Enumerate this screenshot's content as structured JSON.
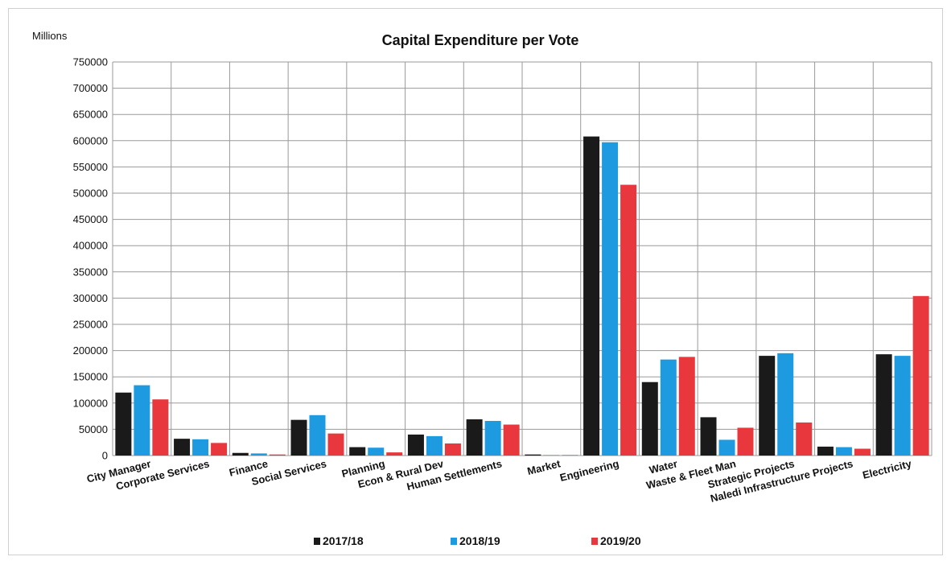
{
  "chart_data": {
    "type": "bar",
    "title": "Capital Expenditure per Vote",
    "ylabel": "Millions",
    "xlabel": "",
    "ylim": [
      0,
      750000
    ],
    "yticks": [
      0,
      50000,
      100000,
      150000,
      200000,
      250000,
      300000,
      350000,
      400000,
      450000,
      500000,
      550000,
      600000,
      650000,
      700000,
      750000
    ],
    "grid": true,
    "legend_position": "bottom",
    "categories": [
      "City Manager",
      "Corporate Services",
      "Finance",
      "Social Services",
      "Planning",
      "Econ & Rural Dev",
      "Human Settlements",
      "Market",
      "Engineering",
      "Water",
      "Waste & Fleet Man",
      "Strategic Projects",
      "Naledi Infrastructure Projects",
      "Electricity"
    ],
    "series": [
      {
        "name": "2017/18",
        "color": "#1a1a1a",
        "values": [
          120000,
          32000,
          5000,
          68000,
          16000,
          40000,
          69000,
          2000,
          608000,
          140000,
          73000,
          190000,
          17000,
          193000
        ]
      },
      {
        "name": "2018/19",
        "color": "#1e9be0",
        "values": [
          134000,
          31000,
          4000,
          77000,
          15000,
          37000,
          66000,
          1000,
          597000,
          183000,
          30000,
          195000,
          16000,
          190000
        ]
      },
      {
        "name": "2019/20",
        "color": "#e8383d",
        "values": [
          107000,
          24000,
          2000,
          42000,
          6000,
          23000,
          59000,
          1000,
          516000,
          188000,
          53000,
          63000,
          13000,
          304000
        ]
      }
    ]
  }
}
